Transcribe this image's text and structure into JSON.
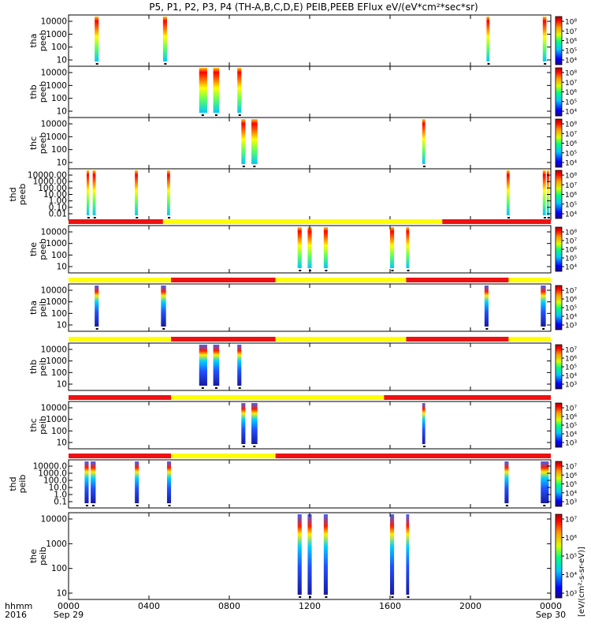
{
  "title": "P5, P1, P2, P3, P4 (TH-A,B,C,D,E) PEIB,PEEB EFlux eV/(eV*cm²*sec*sr)",
  "time_axis": {
    "row_label_1": "hhmm",
    "row_label_2": "2016",
    "ticks": [
      {
        "t": 0,
        "l1": "0000",
        "l2": "Sep 29"
      },
      {
        "t": 4,
        "l1": "0400",
        "l2": ""
      },
      {
        "t": 8,
        "l1": "0800",
        "l2": ""
      },
      {
        "t": 12,
        "l1": "1200",
        "l2": ""
      },
      {
        "t": 16,
        "l1": "1600",
        "l2": ""
      },
      {
        "t": 20,
        "l1": "2000",
        "l2": ""
      },
      {
        "t": 24,
        "l1": "0000",
        "l2": "Sep 30"
      }
    ],
    "range_hours": [
      0,
      24
    ]
  },
  "colorbar_label": "[eV/(cm²-s-sr-eV)]",
  "colors": {
    "bar_red": "#ee1111",
    "bar_yellow": "#ffff00",
    "black": "#000000"
  },
  "chart_data": {
    "type": "heatmap",
    "x_unit": "hours since 2016-09-29 00:00",
    "panels": [
      {
        "probe": "tha",
        "inst": "peeb",
        "yticks": [
          "10",
          "100",
          "1000",
          "10000"
        ],
        "log_y": true,
        "cbar_ticks": [
          "10⁴",
          "10⁵",
          "10⁶",
          "10⁷",
          "10⁸"
        ],
        "bursts": [
          [
            1.3,
            1.5
          ],
          [
            4.7,
            4.9
          ],
          [
            20.8,
            20.95
          ],
          [
            23.6,
            23.78
          ]
        ],
        "mode_bar": null
      },
      {
        "probe": "thb",
        "inst": "peeb",
        "yticks": [
          "10",
          "100",
          "1000",
          "10000"
        ],
        "log_y": true,
        "cbar_ticks": [
          "10⁴",
          "10⁵",
          "10⁶",
          "10⁷",
          "10⁸"
        ],
        "bursts": [
          [
            6.5,
            6.9
          ],
          [
            7.2,
            7.5
          ],
          [
            8.4,
            8.6
          ]
        ],
        "mode_bar": null
      },
      {
        "probe": "thc",
        "inst": "peeb",
        "yticks": [
          "10",
          "100",
          "1000",
          "10000"
        ],
        "log_y": true,
        "cbar_ticks": [
          "10⁴",
          "10⁵",
          "10⁶",
          "10⁷",
          "10⁸"
        ],
        "bursts": [
          [
            8.6,
            8.8
          ],
          [
            9.1,
            9.4
          ],
          [
            17.6,
            17.75
          ]
        ],
        "mode_bar": null
      },
      {
        "probe": "thd",
        "inst": "peeb",
        "yticks": [
          "0.01",
          "0.10",
          "1.00",
          "10.00",
          "100.00",
          "1000.00",
          "10000.00"
        ],
        "log_y": true,
        "cbar_ticks": [
          "10⁴",
          "10⁵",
          "10⁶",
          "10⁷",
          "10⁸"
        ],
        "bursts": [
          [
            0.9,
            1.0
          ],
          [
            1.2,
            1.35
          ],
          [
            3.3,
            3.45
          ],
          [
            4.9,
            5.05
          ],
          [
            21.8,
            21.95
          ],
          [
            23.6,
            23.75
          ],
          [
            23.8,
            23.9
          ]
        ],
        "mode_bar": null
      },
      {
        "probe": "the",
        "inst": "peeb",
        "yticks": [
          "10",
          "100",
          "1000",
          "10000"
        ],
        "log_y": true,
        "cbar_ticks": [
          "10⁴",
          "10⁵",
          "10⁶",
          "10⁷",
          "10⁸"
        ],
        "bursts": [
          [
            11.4,
            11.6
          ],
          [
            11.9,
            12.1
          ],
          [
            12.7,
            12.9
          ],
          [
            16.0,
            16.2
          ],
          [
            16.8,
            16.95
          ]
        ],
        "mode_bar": [
          {
            "from": 0,
            "to": 4.7,
            "mode": "red"
          },
          {
            "from": 4.7,
            "to": 18.6,
            "mode": "yellow"
          },
          {
            "from": 18.6,
            "to": 24,
            "mode": "red"
          }
        ]
      },
      {
        "probe": "tha",
        "inst": "peib",
        "yticks": [
          "10",
          "100",
          "1000",
          "10000"
        ],
        "log_y": true,
        "cbar_ticks": [
          "10³",
          "10⁴",
          "10⁵",
          "10⁶",
          "10⁷"
        ],
        "bursts": [
          [
            1.3,
            1.5
          ],
          [
            4.6,
            4.85
          ],
          [
            20.7,
            20.9
          ],
          [
            23.5,
            23.75
          ]
        ],
        "mode_bar": [
          {
            "from": 0,
            "to": 5.1,
            "mode": "yellow"
          },
          {
            "from": 5.1,
            "to": 10.3,
            "mode": "red"
          },
          {
            "from": 10.3,
            "to": 16.8,
            "mode": "yellow"
          },
          {
            "from": 16.8,
            "to": 21.9,
            "mode": "red"
          },
          {
            "from": 21.9,
            "to": 24,
            "mode": "yellow"
          }
        ]
      },
      {
        "probe": "thb",
        "inst": "peib",
        "yticks": [
          "10",
          "100",
          "1000",
          "10000"
        ],
        "log_y": true,
        "cbar_ticks": [
          "10³",
          "10⁴",
          "10⁵",
          "10⁶",
          "10⁷"
        ],
        "bursts": [
          [
            6.5,
            6.9
          ],
          [
            7.2,
            7.5
          ],
          [
            8.4,
            8.6
          ]
        ],
        "mode_bar": [
          {
            "from": 0,
            "to": 5.1,
            "mode": "yellow"
          },
          {
            "from": 5.1,
            "to": 10.3,
            "mode": "red"
          },
          {
            "from": 10.3,
            "to": 16.8,
            "mode": "yellow"
          },
          {
            "from": 16.8,
            "to": 21.9,
            "mode": "red"
          },
          {
            "from": 21.9,
            "to": 24,
            "mode": "yellow"
          }
        ]
      },
      {
        "probe": "thc",
        "inst": "peib",
        "yticks": [
          "10",
          "100",
          "1000",
          "10000"
        ],
        "log_y": true,
        "cbar_ticks": [
          "10³",
          "10⁴",
          "10⁵",
          "10⁶",
          "10⁷"
        ],
        "bursts": [
          [
            8.6,
            8.8
          ],
          [
            9.1,
            9.4
          ],
          [
            17.6,
            17.75
          ]
        ],
        "mode_bar": [
          {
            "from": 0,
            "to": 5.1,
            "mode": "red"
          },
          {
            "from": 5.1,
            "to": 15.7,
            "mode": "yellow"
          },
          {
            "from": 15.7,
            "to": 24,
            "mode": "red"
          }
        ]
      },
      {
        "probe": "thd",
        "inst": "peib",
        "yticks": [
          "0.1",
          "1.0",
          "10.0",
          "100.0",
          "1000.0",
          "10000.0"
        ],
        "log_y": true,
        "cbar_ticks": [
          "10³",
          "10⁴",
          "10⁵",
          "10⁶",
          "10⁷"
        ],
        "bursts": [
          [
            0.8,
            1.0
          ],
          [
            1.1,
            1.35
          ],
          [
            3.3,
            3.5
          ],
          [
            4.9,
            5.1
          ],
          [
            21.7,
            21.9
          ],
          [
            23.5,
            23.9
          ]
        ],
        "mode_bar": [
          {
            "from": 0,
            "to": 5.1,
            "mode": "red"
          },
          {
            "from": 5.1,
            "to": 10.3,
            "mode": "yellow"
          },
          {
            "from": 10.3,
            "to": 24,
            "mode": "red"
          }
        ]
      },
      {
        "probe": "the",
        "inst": "peib",
        "yticks": [
          "10",
          "100",
          "1000",
          "10000"
        ],
        "log_y": true,
        "cbar_ticks": [
          "10³",
          "10⁴",
          "10⁵",
          "10⁶",
          "10⁷"
        ],
        "bursts": [
          [
            11.4,
            11.6
          ],
          [
            11.9,
            12.1
          ],
          [
            12.7,
            12.9
          ],
          [
            16.0,
            16.2
          ],
          [
            16.8,
            16.95
          ]
        ],
        "mode_bar": null
      }
    ]
  }
}
